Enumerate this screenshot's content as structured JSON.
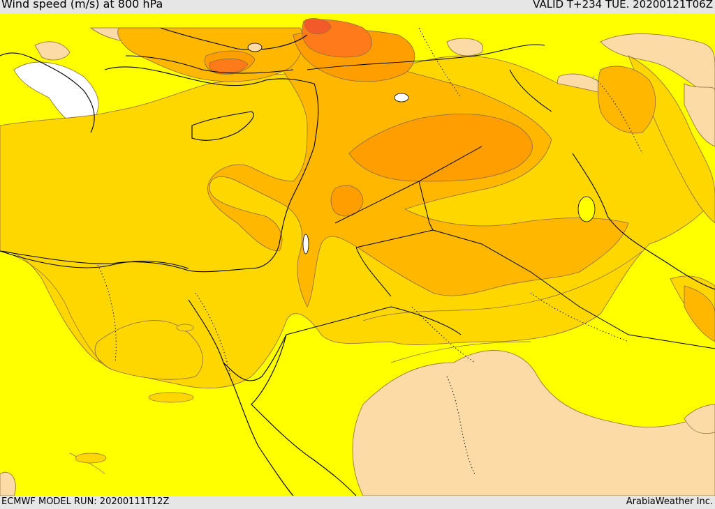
{
  "header": {
    "title": "Wind speed (m/s) at 800 hPa",
    "valid": "VALID T+234 TUE. 20200121T06Z"
  },
  "footer": {
    "model_run": "ECMWF MODEL RUN: 20200111T12Z",
    "credit": "ArabiaWeather Inc."
  },
  "colors": {
    "calm": "#ffffff",
    "light": "#ffffff",
    "yellow": "#ffff00",
    "gold": "#ffd700",
    "amber": "#ffb700",
    "orange": "#ff9e00",
    "dark_orange": "#ff7a1a",
    "red_orange": "#f25a2a",
    "tan": "#fcdba6",
    "contour": "#8a6a3a",
    "coast": "#000000"
  }
}
